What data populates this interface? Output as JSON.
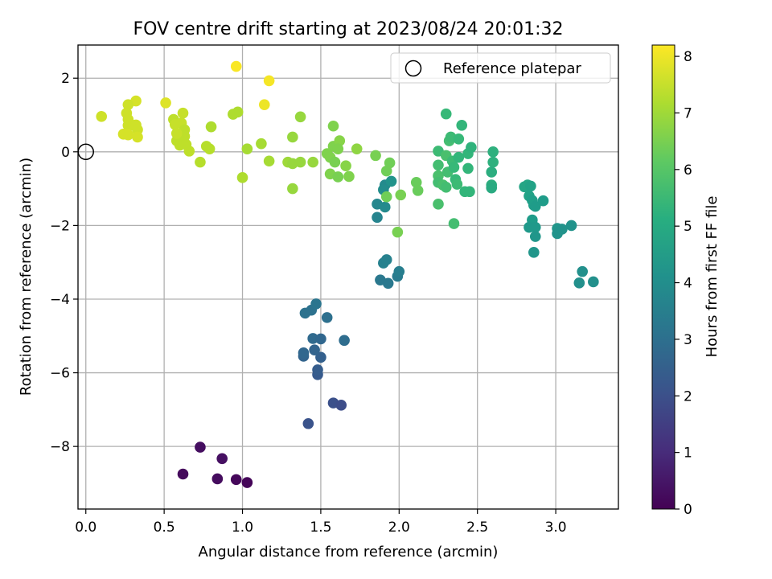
{
  "chart_data": {
    "type": "scatter",
    "title": "FOV centre drift starting at 2023/08/24 20:01:32",
    "xlabel": "Angular distance from reference (arcmin)",
    "ylabel": "Rotation from reference (arcmin)",
    "xlim": [
      -0.05,
      3.4
    ],
    "ylim": [
      -9.7,
      2.9
    ],
    "xticks": [
      0.0,
      0.5,
      1.0,
      1.5,
      2.0,
      2.5,
      3.0
    ],
    "xtick_labels": [
      "0.0",
      "0.5",
      "1.0",
      "1.5",
      "2.0",
      "2.5",
      "3.0"
    ],
    "yticks": [
      -8,
      -6,
      -4,
      -2,
      0,
      2
    ],
    "ytick_labels": [
      "−8",
      "−6",
      "−4",
      "−2",
      "0",
      "2"
    ],
    "grid": true,
    "colormap": "viridis",
    "colorbar": {
      "label": "Hours from first FF file",
      "range": [
        0,
        8.2
      ],
      "ticks": [
        0,
        1,
        2,
        3,
        4,
        5,
        6,
        7,
        8
      ],
      "tick_labels": [
        "0",
        "1",
        "2",
        "3",
        "4",
        "5",
        "6",
        "7",
        "8"
      ]
    },
    "legend": {
      "placement": "top-right",
      "entries": [
        "Reference platepar"
      ]
    },
    "reference_point": {
      "x": 0.0,
      "y": 0.0
    },
    "points": [
      {
        "x": 0.73,
        "y": -8.02,
        "t": 0.3
      },
      {
        "x": 0.87,
        "y": -8.33,
        "t": 0.35
      },
      {
        "x": 0.62,
        "y": -8.75,
        "t": 0.2
      },
      {
        "x": 0.84,
        "y": -8.88,
        "t": 0.25
      },
      {
        "x": 0.96,
        "y": -8.9,
        "t": 0.15
      },
      {
        "x": 1.03,
        "y": -8.98,
        "t": 0.1
      },
      {
        "x": 1.42,
        "y": -7.38,
        "t": 2.1
      },
      {
        "x": 1.58,
        "y": -6.82,
        "t": 2.0
      },
      {
        "x": 1.63,
        "y": -6.88,
        "t": 1.9
      },
      {
        "x": 1.48,
        "y": -6.05,
        "t": 2.3
      },
      {
        "x": 1.48,
        "y": -5.92,
        "t": 2.4
      },
      {
        "x": 1.5,
        "y": -5.58,
        "t": 2.5
      },
      {
        "x": 1.39,
        "y": -5.55,
        "t": 2.6
      },
      {
        "x": 1.39,
        "y": -5.46,
        "t": 2.7
      },
      {
        "x": 1.46,
        "y": -5.38,
        "t": 2.6
      },
      {
        "x": 1.45,
        "y": -5.07,
        "t": 2.8
      },
      {
        "x": 1.5,
        "y": -5.08,
        "t": 2.7
      },
      {
        "x": 1.65,
        "y": -5.12,
        "t": 2.9
      },
      {
        "x": 1.54,
        "y": -4.5,
        "t": 3.0
      },
      {
        "x": 1.4,
        "y": -4.38,
        "t": 3.1
      },
      {
        "x": 1.44,
        "y": -4.3,
        "t": 3.1
      },
      {
        "x": 1.47,
        "y": -4.13,
        "t": 3.2
      },
      {
        "x": 1.88,
        "y": -3.48,
        "t": 3.3
      },
      {
        "x": 1.93,
        "y": -3.57,
        "t": 3.3
      },
      {
        "x": 1.99,
        "y": -3.38,
        "t": 3.4
      },
      {
        "x": 2.0,
        "y": -3.25,
        "t": 3.5
      },
      {
        "x": 1.9,
        "y": -3.02,
        "t": 3.6
      },
      {
        "x": 1.92,
        "y": -2.93,
        "t": 3.6
      },
      {
        "x": 1.86,
        "y": -1.78,
        "t": 3.7
      },
      {
        "x": 1.86,
        "y": -1.42,
        "t": 3.8
      },
      {
        "x": 1.91,
        "y": -1.5,
        "t": 3.9
      },
      {
        "x": 1.91,
        "y": -0.9,
        "t": 3.9
      },
      {
        "x": 1.9,
        "y": -1.03,
        "t": 4.0
      },
      {
        "x": 1.95,
        "y": -0.8,
        "t": 4.2
      },
      {
        "x": 1.99,
        "y": -2.18,
        "t": 6.5
      },
      {
        "x": 1.92,
        "y": -1.22,
        "t": 6.4
      },
      {
        "x": 2.01,
        "y": -1.17,
        "t": 6.5
      },
      {
        "x": 1.92,
        "y": -0.52,
        "t": 6.4
      },
      {
        "x": 1.94,
        "y": -0.3,
        "t": 6.4
      },
      {
        "x": 1.85,
        "y": -0.1,
        "t": 6.5
      },
      {
        "x": 2.11,
        "y": -0.83,
        "t": 6.3
      },
      {
        "x": 2.12,
        "y": -1.05,
        "t": 6.3
      },
      {
        "x": 2.25,
        "y": -1.42,
        "t": 5.8
      },
      {
        "x": 2.35,
        "y": -1.95,
        "t": 5.7
      },
      {
        "x": 2.3,
        "y": 1.03,
        "t": 5.5
      },
      {
        "x": 2.25,
        "y": 0.02,
        "t": 5.6
      },
      {
        "x": 2.25,
        "y": -0.36,
        "t": 5.7
      },
      {
        "x": 2.25,
        "y": -0.65,
        "t": 5.8
      },
      {
        "x": 2.25,
        "y": -0.83,
        "t": 5.7
      },
      {
        "x": 2.28,
        "y": -0.9,
        "t": 5.8
      },
      {
        "x": 2.3,
        "y": -0.96,
        "t": 5.7
      },
      {
        "x": 2.3,
        "y": -0.1,
        "t": 5.8
      },
      {
        "x": 2.31,
        "y": -0.55,
        "t": 5.7
      },
      {
        "x": 2.32,
        "y": 0.3,
        "t": 5.7
      },
      {
        "x": 2.33,
        "y": 0.4,
        "t": 5.6
      },
      {
        "x": 2.34,
        "y": -0.25,
        "t": 5.6
      },
      {
        "x": 2.35,
        "y": -0.42,
        "t": 5.5
      },
      {
        "x": 2.36,
        "y": -0.75,
        "t": 5.5
      },
      {
        "x": 2.37,
        "y": -0.88,
        "t": 5.6
      },
      {
        "x": 2.38,
        "y": 0.35,
        "t": 5.5
      },
      {
        "x": 2.4,
        "y": 0.72,
        "t": 5.4
      },
      {
        "x": 2.42,
        "y": -1.08,
        "t": 5.4
      },
      {
        "x": 2.44,
        "y": -0.05,
        "t": 5.4
      },
      {
        "x": 2.44,
        "y": -0.45,
        "t": 5.4
      },
      {
        "x": 2.45,
        "y": -1.08,
        "t": 5.4
      },
      {
        "x": 2.46,
        "y": 0.12,
        "t": 5.3
      },
      {
        "x": 2.38,
        "y": -0.15,
        "t": 5.4
      },
      {
        "x": 2.6,
        "y": 0.0,
        "t": 5.2
      },
      {
        "x": 2.6,
        "y": -0.28,
        "t": 5.2
      },
      {
        "x": 2.59,
        "y": -0.55,
        "t": 5.1
      },
      {
        "x": 2.59,
        "y": -0.9,
        "t": 5.1
      },
      {
        "x": 2.59,
        "y": -0.98,
        "t": 5.0
      },
      {
        "x": 2.8,
        "y": -0.95,
        "t": 4.8
      },
      {
        "x": 2.82,
        "y": -0.9,
        "t": 4.8
      },
      {
        "x": 2.84,
        "y": -0.93,
        "t": 4.7
      },
      {
        "x": 2.83,
        "y": -1.2,
        "t": 4.7
      },
      {
        "x": 2.85,
        "y": -1.32,
        "t": 4.6
      },
      {
        "x": 2.86,
        "y": -1.45,
        "t": 4.6
      },
      {
        "x": 2.87,
        "y": -1.48,
        "t": 4.5
      },
      {
        "x": 2.92,
        "y": -1.33,
        "t": 4.5
      },
      {
        "x": 2.85,
        "y": -1.85,
        "t": 4.5
      },
      {
        "x": 2.83,
        "y": -2.05,
        "t": 4.4
      },
      {
        "x": 2.87,
        "y": -2.05,
        "t": 4.4
      },
      {
        "x": 2.87,
        "y": -2.3,
        "t": 4.3
      },
      {
        "x": 2.86,
        "y": -2.73,
        "t": 4.3
      },
      {
        "x": 3.01,
        "y": -2.08,
        "t": 4.3
      },
      {
        "x": 3.01,
        "y": -2.22,
        "t": 4.2
      },
      {
        "x": 3.04,
        "y": -2.1,
        "t": 4.2
      },
      {
        "x": 3.1,
        "y": -2.0,
        "t": 4.2
      },
      {
        "x": 3.17,
        "y": -3.25,
        "t": 4.1
      },
      {
        "x": 3.15,
        "y": -3.56,
        "t": 4.1
      },
      {
        "x": 3.24,
        "y": -3.53,
        "t": 4.1
      },
      {
        "x": 1.58,
        "y": 0.7,
        "t": 6.6
      },
      {
        "x": 1.58,
        "y": 0.15,
        "t": 6.6
      },
      {
        "x": 1.54,
        "y": -0.05,
        "t": 6.6
      },
      {
        "x": 1.56,
        "y": -0.15,
        "t": 6.6
      },
      {
        "x": 1.59,
        "y": -0.28,
        "t": 6.5
      },
      {
        "x": 1.62,
        "y": 0.3,
        "t": 6.7
      },
      {
        "x": 1.61,
        "y": 0.08,
        "t": 6.6
      },
      {
        "x": 1.56,
        "y": -0.6,
        "t": 6.6
      },
      {
        "x": 1.61,
        "y": -0.68,
        "t": 6.5
      },
      {
        "x": 1.66,
        "y": -0.38,
        "t": 6.7
      },
      {
        "x": 1.68,
        "y": -0.67,
        "t": 6.6
      },
      {
        "x": 1.73,
        "y": 0.08,
        "t": 6.8
      },
      {
        "x": 1.37,
        "y": 0.95,
        "t": 6.9
      },
      {
        "x": 1.32,
        "y": 0.4,
        "t": 6.9
      },
      {
        "x": 1.29,
        "y": -0.28,
        "t": 7.0
      },
      {
        "x": 1.32,
        "y": -0.32,
        "t": 6.9
      },
      {
        "x": 1.37,
        "y": -0.28,
        "t": 6.9
      },
      {
        "x": 1.45,
        "y": -0.28,
        "t": 6.9
      },
      {
        "x": 1.32,
        "y": -1.0,
        "t": 6.9
      },
      {
        "x": 1.17,
        "y": -0.25,
        "t": 7.1
      },
      {
        "x": 1.12,
        "y": 0.22,
        "t": 7.1
      },
      {
        "x": 1.03,
        "y": 0.08,
        "t": 7.1
      },
      {
        "x": 1.0,
        "y": -0.7,
        "t": 7.2
      },
      {
        "x": 0.94,
        "y": 1.02,
        "t": 7.2
      },
      {
        "x": 0.97,
        "y": 1.08,
        "t": 7.2
      },
      {
        "x": 0.8,
        "y": 0.68,
        "t": 7.2
      },
      {
        "x": 0.77,
        "y": 0.15,
        "t": 7.3
      },
      {
        "x": 0.79,
        "y": 0.08,
        "t": 7.3
      },
      {
        "x": 0.73,
        "y": -0.28,
        "t": 7.3
      },
      {
        "x": 0.66,
        "y": 0.02,
        "t": 7.4
      },
      {
        "x": 0.62,
        "y": 1.05,
        "t": 7.5
      },
      {
        "x": 0.56,
        "y": 0.88,
        "t": 7.4
      },
      {
        "x": 0.57,
        "y": 0.74,
        "t": 7.5
      },
      {
        "x": 0.61,
        "y": 0.78,
        "t": 7.5
      },
      {
        "x": 0.63,
        "y": 0.6,
        "t": 7.4
      },
      {
        "x": 0.6,
        "y": 0.46,
        "t": 7.4
      },
      {
        "x": 0.63,
        "y": 0.42,
        "t": 7.4
      },
      {
        "x": 0.58,
        "y": 0.3,
        "t": 7.4
      },
      {
        "x": 0.6,
        "y": 0.18,
        "t": 7.4
      },
      {
        "x": 0.58,
        "y": 0.5,
        "t": 7.5
      },
      {
        "x": 0.64,
        "y": 0.2,
        "t": 7.4
      },
      {
        "x": 0.51,
        "y": 1.33,
        "t": 7.8
      },
      {
        "x": 0.32,
        "y": 1.38,
        "t": 7.7
      },
      {
        "x": 0.27,
        "y": 1.28,
        "t": 7.6
      },
      {
        "x": 0.26,
        "y": 1.05,
        "t": 7.6
      },
      {
        "x": 0.27,
        "y": 0.88,
        "t": 7.6
      },
      {
        "x": 0.27,
        "y": 0.72,
        "t": 7.6
      },
      {
        "x": 0.3,
        "y": 0.72,
        "t": 7.6
      },
      {
        "x": 0.32,
        "y": 0.73,
        "t": 7.6
      },
      {
        "x": 0.33,
        "y": 0.6,
        "t": 7.6
      },
      {
        "x": 0.24,
        "y": 0.48,
        "t": 7.7
      },
      {
        "x": 0.27,
        "y": 0.46,
        "t": 7.7
      },
      {
        "x": 0.33,
        "y": 0.4,
        "t": 7.7
      },
      {
        "x": 0.1,
        "y": 0.96,
        "t": 7.6
      },
      {
        "x": 0.96,
        "y": 2.32,
        "t": 8.15
      },
      {
        "x": 1.17,
        "y": 1.93,
        "t": 8.1
      },
      {
        "x": 1.14,
        "y": 1.28,
        "t": 8.0
      }
    ]
  }
}
